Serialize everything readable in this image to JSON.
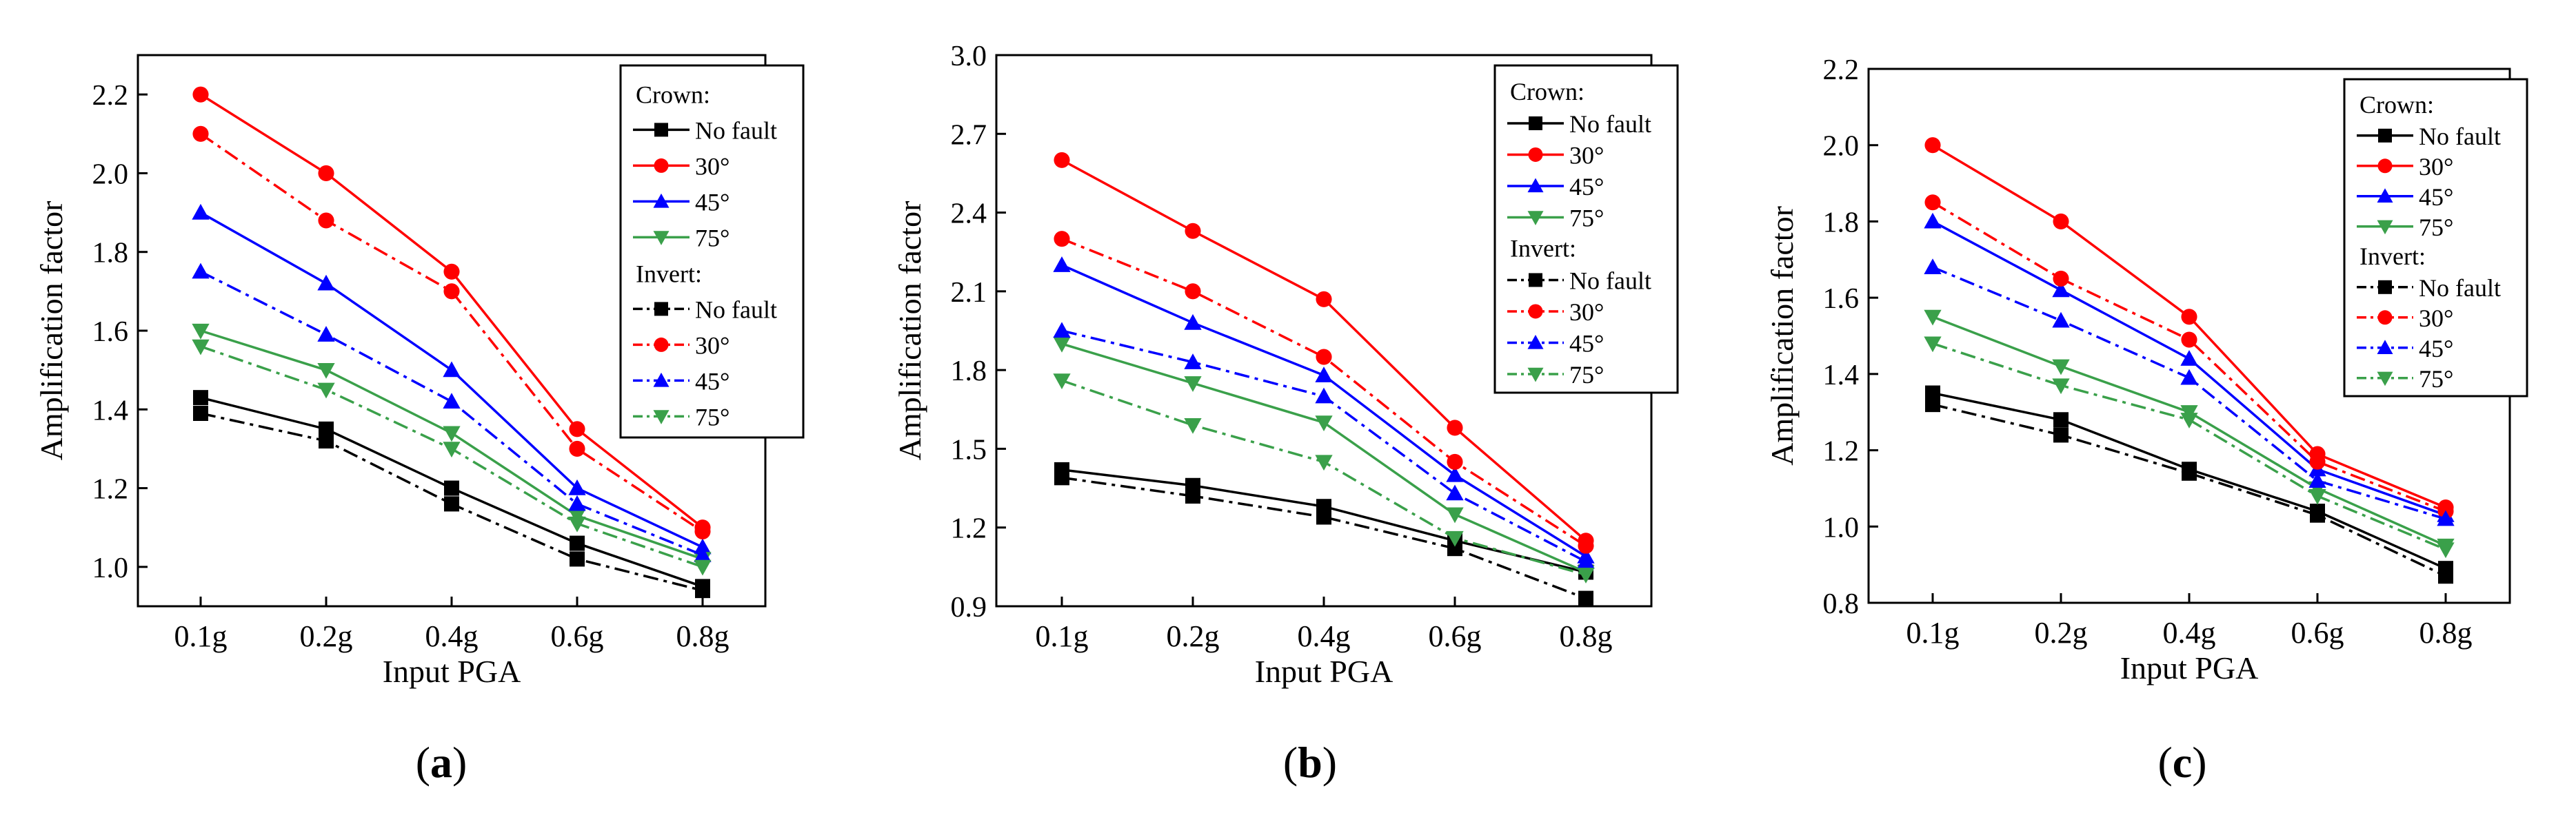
{
  "chart_data": [
    {
      "type": "line",
      "panel_label": "(a)",
      "xlabel": "Input PGA",
      "ylabel": "Amplification factor",
      "categories": [
        "0.1g",
        "0.2g",
        "0.4g",
        "0.6g",
        "0.8g"
      ],
      "ylim": [
        0.9,
        2.3
      ],
      "yticks": [
        1.0,
        1.2,
        1.4,
        1.6,
        1.8,
        2.0,
        2.2
      ],
      "ytick_labels": [
        "1.0",
        "1.2",
        "1.4",
        "1.6",
        "1.8",
        "2.0",
        "2.2"
      ],
      "legend_position": "top-right",
      "legend_groups": [
        "Crown:",
        "Invert:"
      ],
      "series": [
        {
          "name": "No fault",
          "group": "Crown:",
          "color": "#000000",
          "marker": "square",
          "dash": "solid",
          "values": [
            1.43,
            1.35,
            1.2,
            1.06,
            0.95
          ]
        },
        {
          "name": "30°",
          "group": "Crown:",
          "color": "#ff0000",
          "marker": "circle",
          "dash": "solid",
          "values": [
            2.2,
            2.0,
            1.75,
            1.35,
            1.1
          ]
        },
        {
          "name": "45°",
          "group": "Crown:",
          "color": "#0000ff",
          "marker": "triangle-up",
          "dash": "solid",
          "values": [
            1.9,
            1.72,
            1.5,
            1.2,
            1.05
          ]
        },
        {
          "name": "75°",
          "group": "Crown:",
          "color": "#3aa04a",
          "marker": "triangle-down",
          "dash": "solid",
          "values": [
            1.6,
            1.5,
            1.34,
            1.13,
            1.02
          ]
        },
        {
          "name": "No fault",
          "group": "Invert:",
          "color": "#000000",
          "marker": "square",
          "dash": "dashdot",
          "values": [
            1.39,
            1.32,
            1.16,
            1.02,
            0.94
          ]
        },
        {
          "name": "30°",
          "group": "Invert:",
          "color": "#ff0000",
          "marker": "circle",
          "dash": "dashdot",
          "values": [
            2.1,
            1.88,
            1.7,
            1.3,
            1.09
          ]
        },
        {
          "name": "45°",
          "group": "Invert:",
          "color": "#0000ff",
          "marker": "triangle-up",
          "dash": "dashdot",
          "values": [
            1.75,
            1.59,
            1.42,
            1.16,
            1.03
          ]
        },
        {
          "name": "75°",
          "group": "Invert:",
          "color": "#3aa04a",
          "marker": "triangle-down",
          "dash": "dashdot",
          "values": [
            1.56,
            1.45,
            1.3,
            1.11,
            1.0
          ]
        }
      ]
    },
    {
      "type": "line",
      "panel_label": "(b)",
      "xlabel": "Input PGA",
      "ylabel": "Amplification factor",
      "categories": [
        "0.1g",
        "0.2g",
        "0.4g",
        "0.6g",
        "0.8g"
      ],
      "ylim": [
        0.9,
        3.0
      ],
      "yticks": [
        0.9,
        1.2,
        1.5,
        1.8,
        2.1,
        2.4,
        2.7,
        3.0
      ],
      "ytick_labels": [
        "0.9",
        "1.2",
        "1.5",
        "1.8",
        "2.1",
        "2.4",
        "2.7",
        "3.0"
      ],
      "legend_position": "top-right",
      "legend_groups": [
        "Crown:",
        "Invert:"
      ],
      "series": [
        {
          "name": "No fault",
          "group": "Crown:",
          "color": "#000000",
          "marker": "square",
          "dash": "solid",
          "values": [
            1.42,
            1.36,
            1.28,
            1.15,
            1.03
          ]
        },
        {
          "name": "30°",
          "group": "Crown:",
          "color": "#ff0000",
          "marker": "circle",
          "dash": "solid",
          "values": [
            2.6,
            2.33,
            2.07,
            1.58,
            1.15
          ]
        },
        {
          "name": "45°",
          "group": "Crown:",
          "color": "#0000ff",
          "marker": "triangle-up",
          "dash": "solid",
          "values": [
            2.2,
            1.98,
            1.78,
            1.4,
            1.09
          ]
        },
        {
          "name": "75°",
          "group": "Crown:",
          "color": "#3aa04a",
          "marker": "triangle-down",
          "dash": "solid",
          "values": [
            1.9,
            1.75,
            1.6,
            1.25,
            1.03
          ]
        },
        {
          "name": "No fault",
          "group": "Invert:",
          "color": "#000000",
          "marker": "square",
          "dash": "dashdot",
          "values": [
            1.39,
            1.32,
            1.24,
            1.12,
            0.93
          ]
        },
        {
          "name": "30°",
          "group": "Invert:",
          "color": "#ff0000",
          "marker": "circle",
          "dash": "dashdot",
          "values": [
            2.3,
            2.1,
            1.85,
            1.45,
            1.13
          ]
        },
        {
          "name": "45°",
          "group": "Invert:",
          "color": "#0000ff",
          "marker": "triangle-up",
          "dash": "dashdot",
          "values": [
            1.95,
            1.83,
            1.7,
            1.33,
            1.07
          ]
        },
        {
          "name": "75°",
          "group": "Invert:",
          "color": "#3aa04a",
          "marker": "triangle-down",
          "dash": "dashdot",
          "values": [
            1.76,
            1.59,
            1.45,
            1.16,
            1.02
          ]
        }
      ]
    },
    {
      "type": "line",
      "panel_label": "(c)",
      "xlabel": "Input PGA",
      "ylabel": "Amplification factor",
      "categories": [
        "0.1g",
        "0.2g",
        "0.4g",
        "0.6g",
        "0.8g"
      ],
      "ylim": [
        0.8,
        2.2
      ],
      "yticks": [
        0.8,
        1.0,
        1.2,
        1.4,
        1.6,
        1.8,
        2.0,
        2.2
      ],
      "ytick_labels": [
        "0.8",
        "1.0",
        "1.2",
        "1.4",
        "1.6",
        "1.8",
        "2.0",
        "2.2"
      ],
      "legend_position": "top-right",
      "legend_groups": [
        "Crown:",
        "Invert:"
      ],
      "series": [
        {
          "name": "No fault",
          "group": "Crown:",
          "color": "#000000",
          "marker": "square",
          "dash": "solid",
          "values": [
            1.35,
            1.28,
            1.15,
            1.04,
            0.89
          ]
        },
        {
          "name": "30°",
          "group": "Crown:",
          "color": "#ff0000",
          "marker": "circle",
          "dash": "solid",
          "values": [
            2.0,
            1.8,
            1.55,
            1.19,
            1.05
          ]
        },
        {
          "name": "45°",
          "group": "Crown:",
          "color": "#0000ff",
          "marker": "triangle-up",
          "dash": "solid",
          "values": [
            1.8,
            1.62,
            1.44,
            1.15,
            1.03
          ]
        },
        {
          "name": "75°",
          "group": "Crown:",
          "color": "#3aa04a",
          "marker": "triangle-down",
          "dash": "solid",
          "values": [
            1.55,
            1.42,
            1.3,
            1.1,
            0.95
          ]
        },
        {
          "name": "No fault",
          "group": "Invert:",
          "color": "#000000",
          "marker": "square",
          "dash": "dashdot",
          "values": [
            1.32,
            1.24,
            1.14,
            1.03,
            0.87
          ]
        },
        {
          "name": "30°",
          "group": "Invert:",
          "color": "#ff0000",
          "marker": "circle",
          "dash": "dashdot",
          "values": [
            1.85,
            1.65,
            1.49,
            1.17,
            1.04
          ]
        },
        {
          "name": "45°",
          "group": "Invert:",
          "color": "#0000ff",
          "marker": "triangle-up",
          "dash": "dashdot",
          "values": [
            1.68,
            1.54,
            1.39,
            1.12,
            1.02
          ]
        },
        {
          "name": "75°",
          "group": "Invert:",
          "color": "#3aa04a",
          "marker": "triangle-down",
          "dash": "dashdot",
          "values": [
            1.48,
            1.37,
            1.28,
            1.08,
            0.94
          ]
        }
      ]
    }
  ]
}
